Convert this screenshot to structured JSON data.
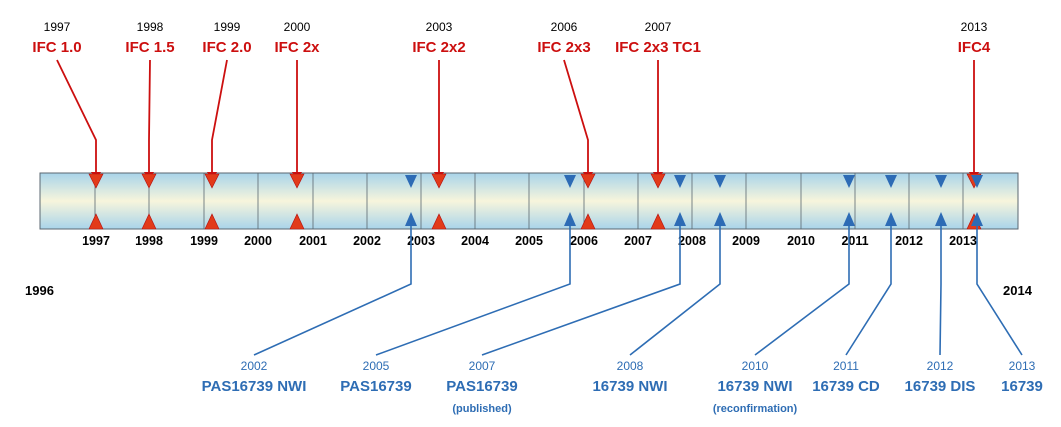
{
  "colors": {
    "ifc": "#cc0f0f",
    "iso": "#2e6db4",
    "bar_edge": "#5b6770",
    "bar_top": "#a9d4ea",
    "bar_mid": "#f7f5dc"
  },
  "range": {
    "start": "1996",
    "end": "2014"
  },
  "year_ticks": [
    "1997",
    "1998",
    "1999",
    "2000",
    "2001",
    "2002",
    "2003",
    "2004",
    "2005",
    "2006",
    "2007",
    "2008",
    "2009",
    "2010",
    "2011",
    "2012",
    "2013"
  ],
  "ifc_releases": [
    {
      "year": "1997",
      "name": "IFC 1.0"
    },
    {
      "year": "1998",
      "name": "IFC 1.5"
    },
    {
      "year": "1999",
      "name": "IFC 2.0"
    },
    {
      "year": "2000",
      "name": "IFC 2x"
    },
    {
      "year": "2003",
      "name": "IFC 2x2"
    },
    {
      "year": "2006",
      "name": "IFC 2x3"
    },
    {
      "year": "2007",
      "name": "IFC 2x3 TC1"
    },
    {
      "year": "2013",
      "name": "IFC4"
    }
  ],
  "iso_milestones": [
    {
      "year": "2002",
      "name": "PAS16739 NWI",
      "note": ""
    },
    {
      "year": "2005",
      "name": "PAS16739",
      "note": ""
    },
    {
      "year": "2007",
      "name": "PAS16739",
      "note": "(published)"
    },
    {
      "year": "2008",
      "name": "16739 NWI",
      "note": ""
    },
    {
      "year": "2010",
      "name": "16739 NWI",
      "note": "(reconfirmation)"
    },
    {
      "year": "2011",
      "name": "16739 CD",
      "note": ""
    },
    {
      "year": "2012",
      "name": "16739 DIS",
      "note": ""
    },
    {
      "year": "2013",
      "name": "16739",
      "note": ""
    }
  ]
}
